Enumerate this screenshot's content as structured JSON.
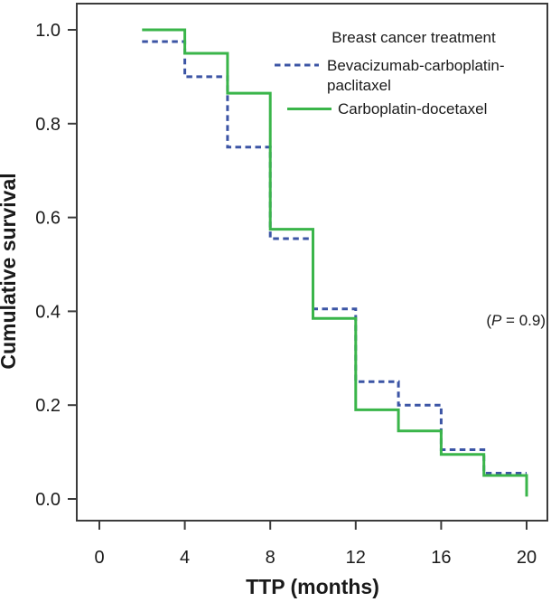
{
  "chart_data": {
    "type": "line",
    "variant": "kaplan_meier_step",
    "xlabel": "TTP (months)",
    "ylabel": "Cumulative survival",
    "xlim": [
      0,
      20
    ],
    "ylim": [
      0.0,
      1.0
    ],
    "x_ticks": [
      0,
      4,
      8,
      12,
      16,
      20
    ],
    "y_ticks": [
      0.0,
      0.2,
      0.4,
      0.6,
      0.8,
      1.0
    ],
    "grid": false,
    "legend": {
      "title": "Breast cancer treatment",
      "position": "top-right-inside",
      "items": [
        {
          "label_lines": [
            "Bevacizumab-carboplatin-",
            "paclitaxel"
          ],
          "style": "dashed",
          "color": "#3C55A5"
        },
        {
          "label_lines": [
            "Carboplatin-docetaxel"
          ],
          "style": "solid",
          "color": "#3AB54A"
        }
      ]
    },
    "annotation": {
      "text": "(P = 0.9)",
      "prefix": "(",
      "italic_part": "P",
      "suffix": " = 0.9)"
    },
    "series": [
      {
        "name": "Bevacizumab-carboplatin-paclitaxel",
        "line_style": "dashed",
        "color": "#3C55A5",
        "x": [
          2,
          4,
          6,
          8,
          10,
          12,
          14,
          16,
          18,
          20
        ],
        "y": [
          0.975,
          0.9,
          0.75,
          0.555,
          0.405,
          0.25,
          0.2,
          0.105,
          0.055,
          0.055
        ]
      },
      {
        "name": "Carboplatin-docetaxel",
        "line_style": "solid",
        "color": "#3AB54A",
        "x": [
          2,
          4,
          6,
          8,
          10,
          12,
          14,
          16,
          18,
          20
        ],
        "y": [
          1.0,
          0.95,
          0.865,
          0.575,
          0.385,
          0.19,
          0.145,
          0.095,
          0.05,
          0.005
        ]
      }
    ],
    "colors": {
      "axis": "#3b3b3b",
      "text": "#1a1a1a",
      "background": "#ffffff"
    }
  }
}
